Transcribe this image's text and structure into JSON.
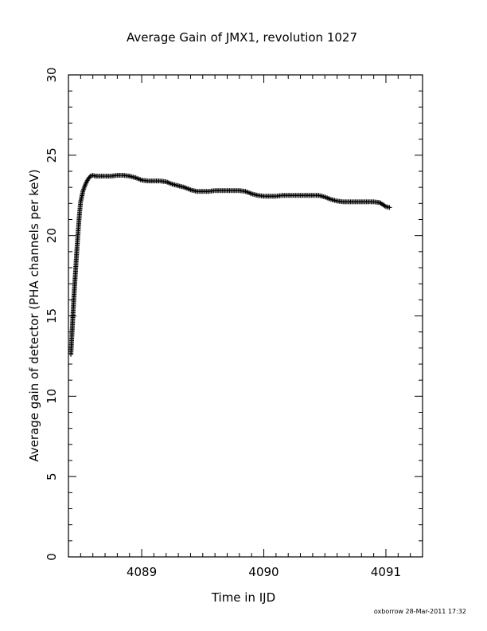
{
  "chart_data": {
    "type": "scatter",
    "title": "Average Gain of JMX1, revolution 1027",
    "xlabel": "Time in IJD",
    "ylabel": "Average gain of detector (PHA channels per keV)",
    "xlim": [
      4088.4,
      4091.3
    ],
    "ylim": [
      0,
      30
    ],
    "x_ticks": [
      4089,
      4090,
      4091
    ],
    "x_tick_labels": [
      "4089",
      "4090",
      "4091"
    ],
    "y_ticks": [
      0,
      5,
      10,
      15,
      20,
      25,
      30
    ],
    "y_tick_labels": [
      "0",
      "5",
      "10",
      "15",
      "20",
      "25",
      "30"
    ],
    "marker": "+",
    "marker_color": "#000000",
    "grid": false,
    "series": [
      {
        "x": [
          4088.42,
          4088.43,
          4088.44,
          4088.45,
          4088.46,
          4088.47,
          4088.48,
          4088.49,
          4088.5,
          4088.52,
          4088.54,
          4088.56,
          4088.58,
          4088.6,
          4088.62,
          4088.65,
          4088.7,
          4088.75,
          4088.8,
          4088.85,
          4088.9,
          4088.95,
          4089.0,
          4089.05,
          4089.1,
          4089.15,
          4089.2,
          4089.25,
          4089.3,
          4089.35,
          4089.4,
          4089.45,
          4089.5,
          4089.55,
          4089.6,
          4089.65,
          4089.7,
          4089.75,
          4089.8,
          4089.85,
          4089.9,
          4089.95,
          4090.0,
          4090.05,
          4090.1,
          4090.15,
          4090.2,
          4090.25,
          4090.3,
          4090.35,
          4090.4,
          4090.45,
          4090.5,
          4090.55,
          4090.6,
          4090.65,
          4090.7,
          4090.75,
          4090.8,
          4090.85,
          4090.9,
          4090.95,
          4091.0,
          4091.03
        ],
        "y": [
          12.6,
          14.0,
          15.5,
          16.8,
          18.0,
          19.2,
          20.3,
          21.3,
          22.1,
          22.8,
          23.2,
          23.5,
          23.7,
          23.75,
          23.7,
          23.7,
          23.7,
          23.7,
          23.75,
          23.75,
          23.7,
          23.6,
          23.45,
          23.4,
          23.4,
          23.4,
          23.35,
          23.2,
          23.1,
          23.0,
          22.85,
          22.75,
          22.75,
          22.75,
          22.8,
          22.8,
          22.8,
          22.8,
          22.8,
          22.75,
          22.6,
          22.5,
          22.45,
          22.45,
          22.45,
          22.5,
          22.5,
          22.5,
          22.5,
          22.5,
          22.5,
          22.5,
          22.4,
          22.25,
          22.15,
          22.1,
          22.1,
          22.1,
          22.1,
          22.1,
          22.1,
          22.05,
          21.8,
          21.75
        ]
      }
    ]
  },
  "footer": {
    "text": "oxborrow 28-Mar-2011 17:32"
  }
}
